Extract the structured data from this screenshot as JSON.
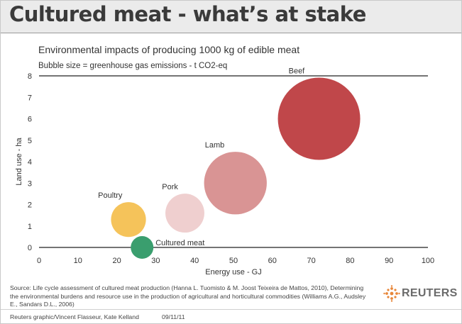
{
  "header": {
    "title": "Cultured meat - what’s at stake"
  },
  "chart_data": {
    "type": "scatter",
    "subtitle": "Environmental impacts of producing 1000 kg of edible meat",
    "size_note": "Bubble size = greenhouse gas emissions - t CO2-eq",
    "xlabel": "Energy use - GJ",
    "ylabel": "Land use - ha",
    "xlim": [
      0,
      100
    ],
    "ylim": [
      0,
      8
    ],
    "x_ticks": [
      "0",
      "10",
      "20",
      "30",
      "40",
      "50",
      "60",
      "70",
      "80",
      "90",
      "100"
    ],
    "y_ticks": [
      "0",
      "1",
      "2",
      "3",
      "4",
      "5",
      "6",
      "7",
      "8"
    ],
    "grid": false,
    "points": [
      {
        "label": "Cultured meat",
        "x": 26.5,
        "y": 0.0,
        "size": 1.9,
        "color": "#3a9e6e"
      },
      {
        "label": "Poultry",
        "x": 23.0,
        "y": 1.3,
        "size": 4.5,
        "color": "#f5c35a"
      },
      {
        "label": "Pork",
        "x": 37.5,
        "y": 1.6,
        "size": 5.6,
        "color": "#efcfcf"
      },
      {
        "label": "Lamb",
        "x": 50.5,
        "y": 3.0,
        "size": 14.5,
        "color": "#d99494"
      },
      {
        "label": "Beef",
        "x": 72.0,
        "y": 6.0,
        "size": 25.0,
        "color": "#c0474a"
      }
    ]
  },
  "footer": {
    "source": "Source: Life cycle assessment of cultured meat production (Hanna L. Tuomisto & M. Joost Teixeira de Mattos, 2010), Determining the environmental burdens and resource use in the production of agricultural and horticultural commodities (Williams A.G., Audsley E., Sandars D.L., 2006)",
    "credit": "Reuters graphic/Vincent Flasseur, Kate Kelland",
    "date": "09/11/11",
    "logo_text": "REUTERS",
    "logo_icon": "reuters-dot-logo"
  }
}
